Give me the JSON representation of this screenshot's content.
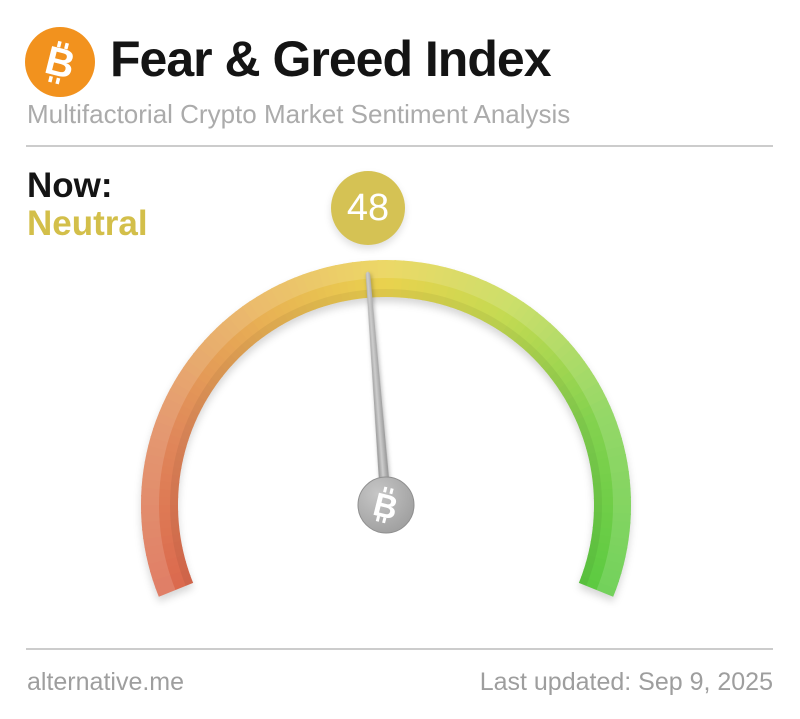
{
  "header": {
    "title": "Fear & Greed Index",
    "subtitle": "Multifactorial Crypto Market Sentiment Analysis",
    "logo_icon": "bitcoin-icon"
  },
  "status": {
    "now_label": "Now:",
    "classification": "Neutral"
  },
  "gauge": {
    "value": 48,
    "min": 0,
    "max": 100,
    "sweep_degrees": 224,
    "badge_color": "#d5c254",
    "badge_text_color": "#ffffff",
    "classification_color": "#d3bf4a",
    "needle_color": "#a6a6a6",
    "hub_color": "#a9a9a9",
    "hub_icon": "bitcoin-icon",
    "gradient_stops": [
      {
        "t": 0.0,
        "color": "#db694e"
      },
      {
        "t": 0.18,
        "color": "#e0885a"
      },
      {
        "t": 0.35,
        "color": "#e8b054"
      },
      {
        "t": 0.5,
        "color": "#e9d24e"
      },
      {
        "t": 0.64,
        "color": "#c5da52"
      },
      {
        "t": 0.8,
        "color": "#84d24f"
      },
      {
        "t": 1.0,
        "color": "#5cca41"
      }
    ]
  },
  "footer": {
    "site_link": "alternative.me",
    "last_updated": "Last updated: Sep 9, 2025"
  },
  "colors": {
    "brand_orange": "#f2921e",
    "title_text": "#141414",
    "subtitle_text": "#ababab",
    "divider": "#cccccc",
    "footer_text": "#9e9e9e",
    "background": "#ffffff"
  },
  "chart_data": {
    "type": "gauge",
    "title": "Fear & Greed Index",
    "value": 48,
    "min": 0,
    "max": 100,
    "classification": "Neutral",
    "needle_position_fraction": 0.48,
    "scale_description": "Semicircular gauge sweeping about 224 degrees; 0 = Extreme Fear (red, lower left) through orange and yellow (Neutral, top) to 100 = Extreme Greed (green, lower right); gray needle points at 48"
  }
}
